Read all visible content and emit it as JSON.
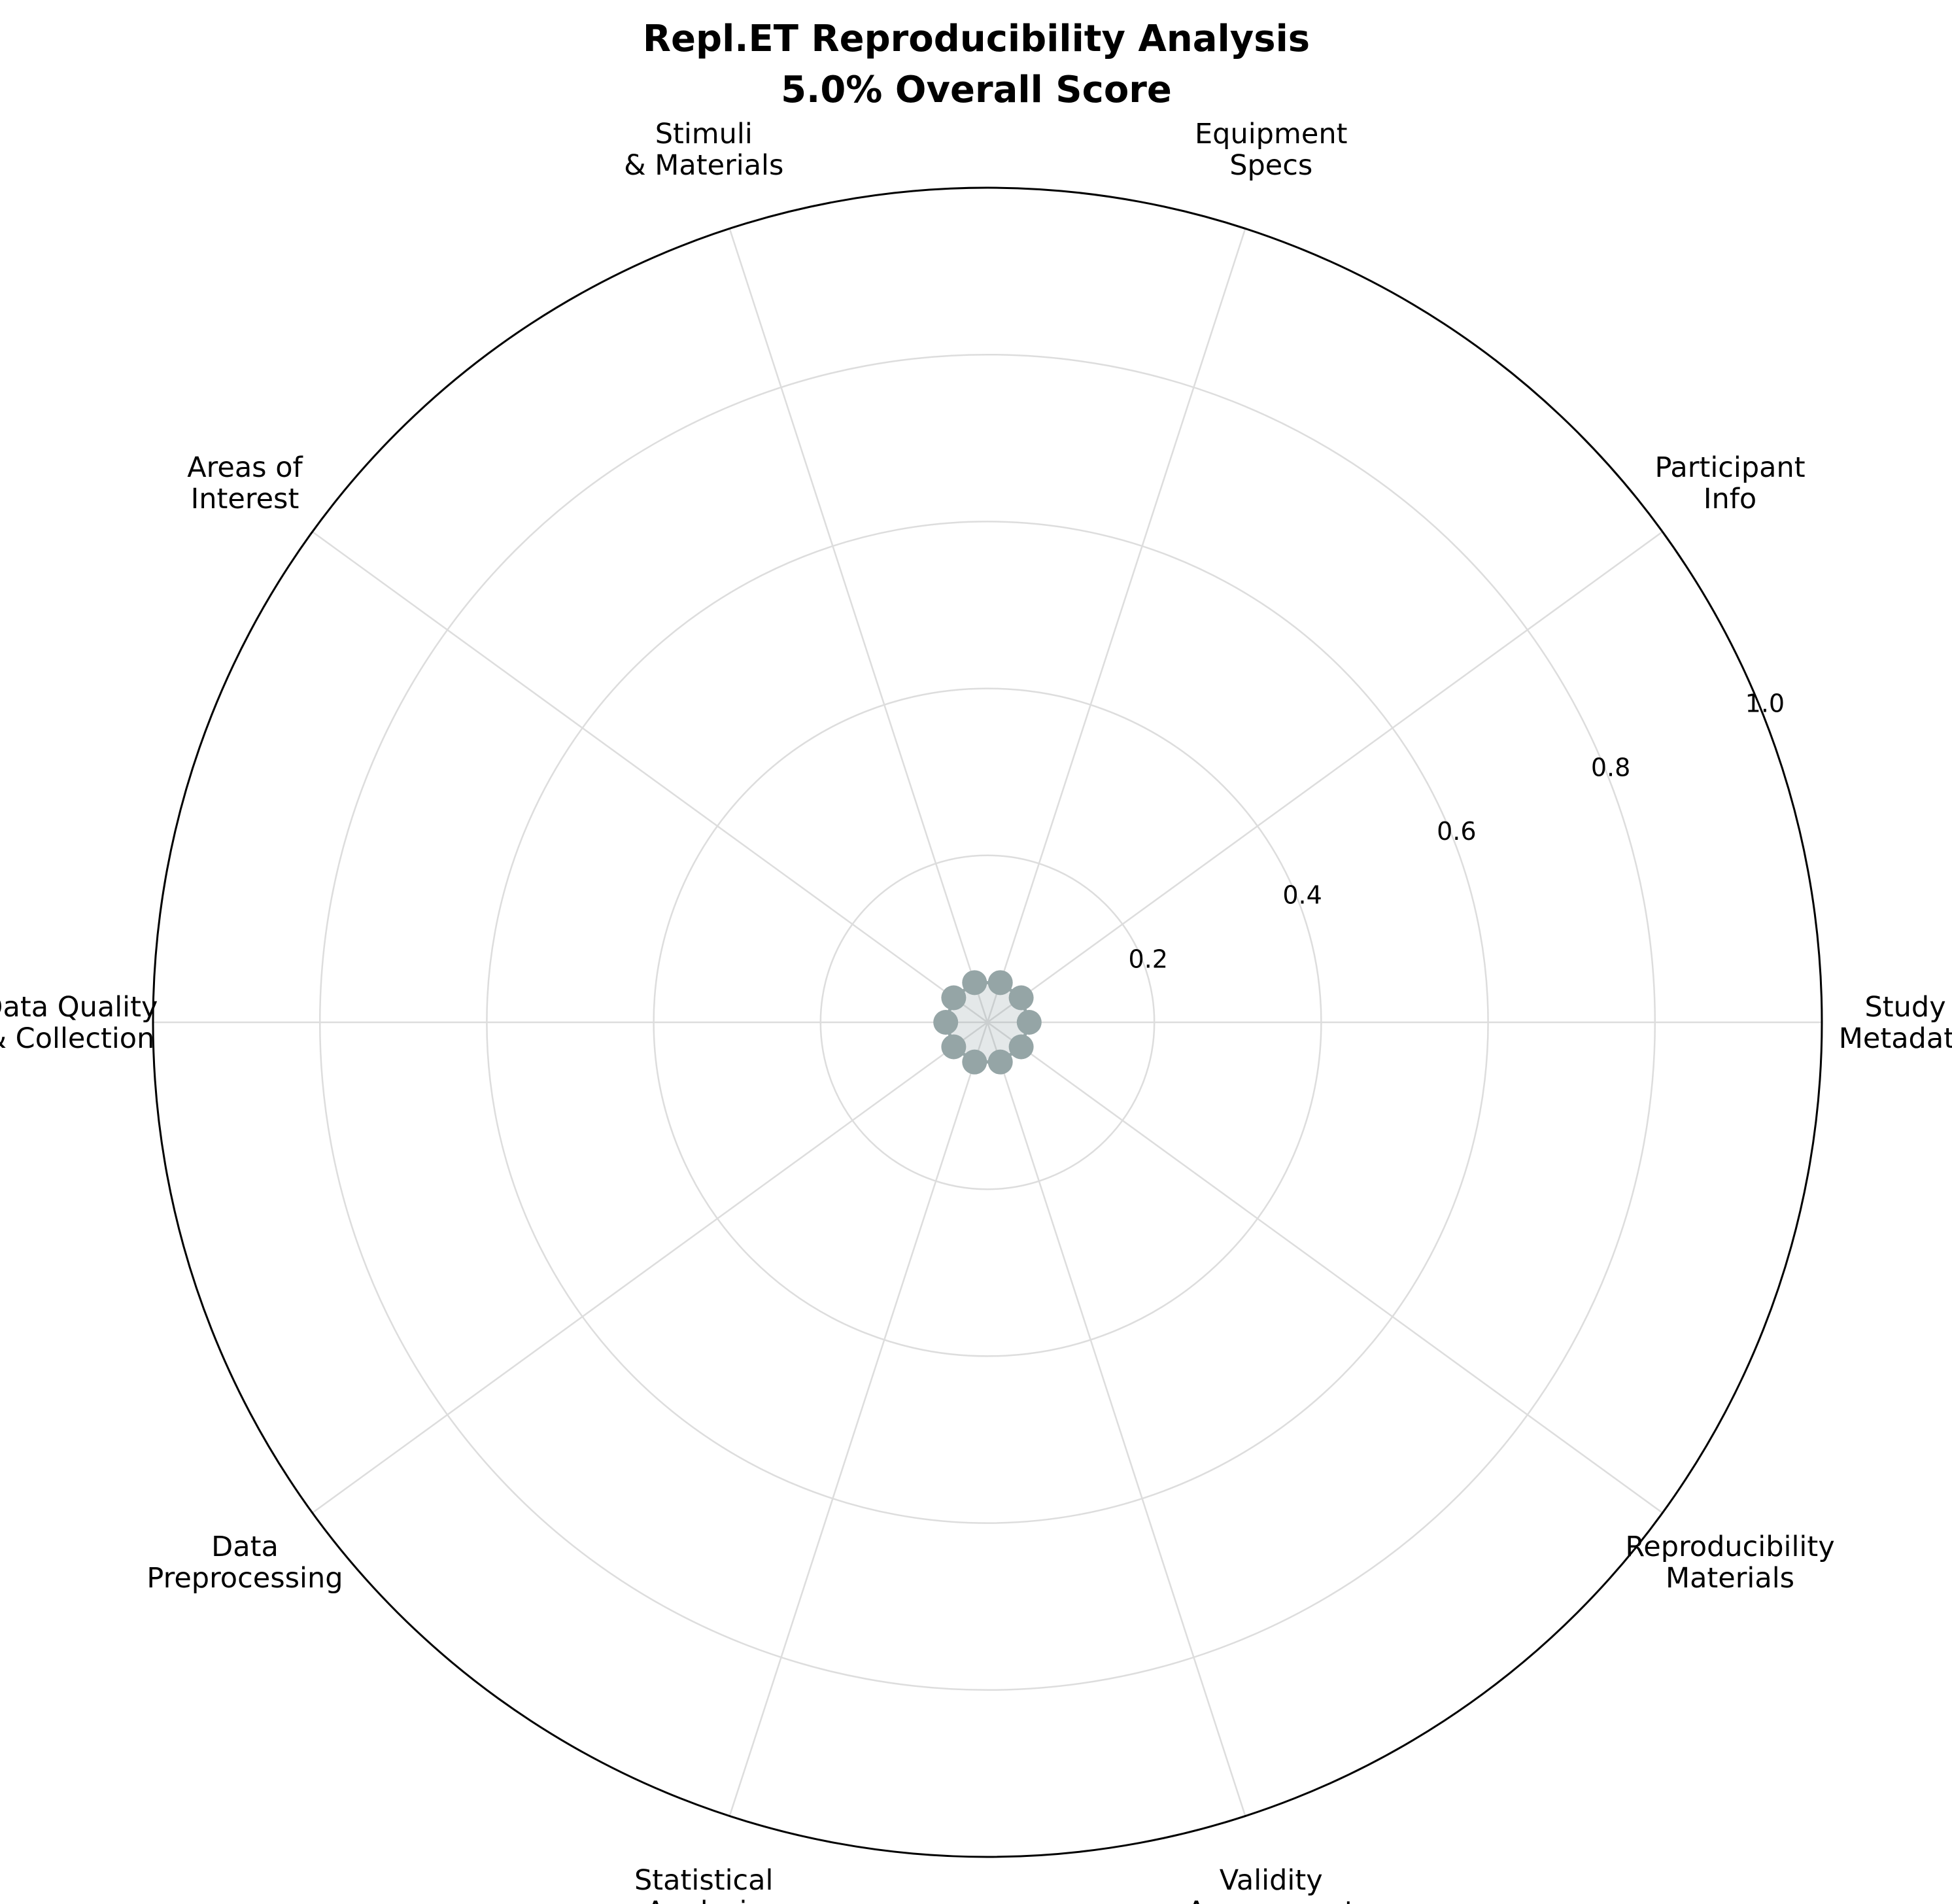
{
  "chart_data": {
    "type": "radar",
    "title": "Repl.ET Reproducibility Analysis",
    "subtitle": "5.0% Overall Score",
    "categories": [
      [
        "Study",
        "Metadata"
      ],
      [
        "Participant",
        "Info"
      ],
      [
        "Equipment",
        "Specs"
      ],
      [
        "Stimuli",
        "& Materials"
      ],
      [
        "Areas of",
        "Interest"
      ],
      [
        "Data Quality",
        "& Collection"
      ],
      [
        "Data",
        "Preprocessing"
      ],
      [
        "Statistical",
        "Analysis"
      ],
      [
        "Validity",
        "Assessment"
      ],
      [
        "Reproducibility",
        "Materials"
      ]
    ],
    "series": [
      {
        "values": [
          0.05,
          0.05,
          0.05,
          0.05,
          0.05,
          0.05,
          0.05,
          0.05,
          0.05,
          0.05
        ]
      }
    ],
    "rlim": [
      0,
      1.0
    ],
    "rticks": [
      "0.2",
      "0.4",
      "0.6",
      "0.8",
      "1.0"
    ],
    "grid": true,
    "colors": {
      "series": "#95a5a6",
      "grid": "#dddddd",
      "outline": "#000000"
    }
  }
}
